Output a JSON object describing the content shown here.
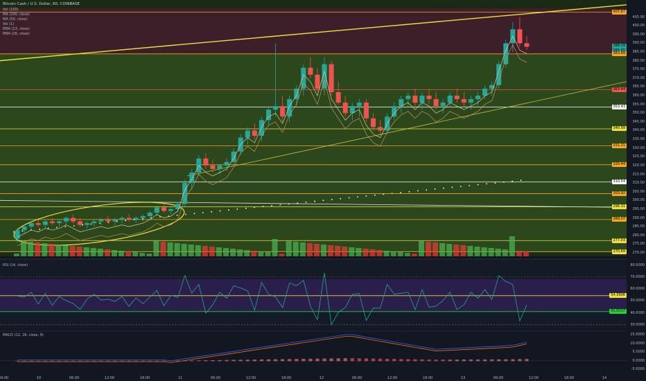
{
  "header": {
    "title": "Bitcoin Cash / U.S. Dollar, 60, COINBASE",
    "indicators": [
      "Vol (100)",
      "MA (200, close)",
      "MA (50, close)",
      "Vol (1)",
      "EMA (13, close)",
      "EMA (26, close)"
    ]
  },
  "rsi_label": "RSI (14, close)",
  "macd_label": "MACD (12, 26, close, 9)",
  "colors": {
    "bg": "#131722",
    "up": "#26a69a",
    "down": "#ef5350",
    "green_zone": "#2f4a1c",
    "red_zone": "#3d1f2a",
    "rsi_bg": "#2a1f4a",
    "yellow": "#f0e040",
    "orange": "#f5a623"
  },
  "price_axis": {
    "ticks": [
      "405.00",
      "400.00",
      "395.00",
      "390.00",
      "385.00",
      "380.00",
      "375.00",
      "370.00",
      "365.00",
      "360.00",
      "355.00",
      "350.00",
      "345.00",
      "340.00",
      "335.00",
      "330.00",
      "325.00",
      "320.00",
      "315.00",
      "310.00",
      "305.00",
      "300.00",
      "295.00",
      "290.00",
      "285.00",
      "280.00",
      "275.00",
      "270.00"
    ],
    "labels": [
      {
        "text": "407.87",
        "color": "#f5a623",
        "price": 407.87
      },
      {
        "text": "388.29",
        "color": "#26a69a",
        "price": 388.29
      },
      {
        "text": "385.55",
        "color": "#26a69a",
        "price": 385.55
      },
      {
        "text": "383.89",
        "color": "#f5a623",
        "price": 383.89
      },
      {
        "text": "363.44",
        "color": "#ef5350",
        "price": 363.44
      },
      {
        "text": "353.43",
        "color": "#ffffff",
        "price": 353.43
      },
      {
        "text": "340.99",
        "color": "#f0e040",
        "price": 340.99
      },
      {
        "text": "331.21",
        "color": "#f5a623",
        "price": 331.21
      },
      {
        "text": "320.44",
        "color": "#f5a623",
        "price": 320.44
      },
      {
        "text": "310.54",
        "color": "#ffffff",
        "price": 310.54
      },
      {
        "text": "303.92",
        "color": "#f5a623",
        "price": 303.92
      },
      {
        "text": "296.31",
        "color": "#f0e040",
        "price": 296.31
      },
      {
        "text": "289.07",
        "color": "#f5a623",
        "price": 289.07
      },
      {
        "text": "277.03",
        "color": "#f0e040",
        "price": 277.03
      },
      {
        "text": "270.69",
        "color": "#f0e040",
        "price": 270.69
      }
    ]
  },
  "rsi_axis": {
    "ticks": [
      "80.0000",
      "70.0000",
      "60.0000",
      "50.0000",
      "40.0000",
      "30.0000"
    ],
    "labels": [
      {
        "text": "54.3906",
        "color": "#f0e040",
        "value": 54.39
      },
      {
        "text": "41.0117",
        "color": "#26d23a",
        "value": 41.01
      }
    ]
  },
  "macd_axis": {
    "ticks": [
      "15.0000",
      "10.0000",
      "5.0000",
      "0.0000",
      "-5.0000"
    ]
  },
  "time_axis": [
    "09:00",
    "10",
    "06:00",
    "12:00",
    "18:00",
    "11",
    "06:00",
    "12:00",
    "18:00",
    "12",
    "06:00",
    "12:00",
    "18:00",
    "13",
    "06:00",
    "12:00",
    "18:00",
    "14"
  ],
  "chart_data": {
    "type": "candlestick",
    "ylim": [
      268,
      410
    ],
    "candles": [
      [
        278,
        284,
        276,
        283
      ],
      [
        283,
        286,
        281,
        285
      ],
      [
        285,
        288,
        283,
        287
      ],
      [
        287,
        289,
        285,
        286
      ],
      [
        286,
        289,
        284,
        288
      ],
      [
        288,
        290,
        286,
        287
      ],
      [
        287,
        289,
        285,
        288
      ],
      [
        288,
        291,
        286,
        290
      ],
      [
        290,
        292,
        287,
        288
      ],
      [
        288,
        290,
        285,
        286
      ],
      [
        286,
        288,
        284,
        287
      ],
      [
        287,
        289,
        285,
        288
      ],
      [
        288,
        290,
        286,
        289
      ],
      [
        289,
        291,
        287,
        288
      ],
      [
        288,
        290,
        286,
        289
      ],
      [
        289,
        291,
        287,
        290
      ],
      [
        290,
        292,
        288,
        289
      ],
      [
        289,
        291,
        287,
        290
      ],
      [
        290,
        292,
        288,
        291
      ],
      [
        291,
        294,
        289,
        293
      ],
      [
        293,
        297,
        291,
        296
      ],
      [
        296,
        298,
        293,
        294
      ],
      [
        294,
        296,
        292,
        295
      ],
      [
        295,
        299,
        293,
        298
      ],
      [
        298,
        312,
        296,
        310
      ],
      [
        310,
        318,
        306,
        316
      ],
      [
        316,
        326,
        314,
        324
      ],
      [
        324,
        327,
        318,
        320
      ],
      [
        320,
        323,
        316,
        318
      ],
      [
        318,
        321,
        315,
        320
      ],
      [
        320,
        324,
        317,
        322
      ],
      [
        322,
        330,
        320,
        328
      ],
      [
        328,
        338,
        326,
        336
      ],
      [
        336,
        342,
        332,
        340
      ],
      [
        340,
        344,
        335,
        337
      ],
      [
        337,
        348,
        334,
        346
      ],
      [
        346,
        354,
        343,
        352
      ],
      [
        352,
        390,
        348,
        354
      ],
      [
        354,
        360,
        345,
        348
      ],
      [
        348,
        360,
        345,
        358
      ],
      [
        358,
        366,
        354,
        364
      ],
      [
        364,
        378,
        360,
        376
      ],
      [
        376,
        382,
        370,
        372
      ],
      [
        372,
        376,
        362,
        364
      ],
      [
        364,
        382,
        360,
        378
      ],
      [
        378,
        380,
        360,
        362
      ],
      [
        362,
        368,
        355,
        356
      ],
      [
        356,
        360,
        348,
        350
      ],
      [
        350,
        356,
        346,
        354
      ],
      [
        354,
        358,
        348,
        356
      ],
      [
        356,
        358,
        345,
        347
      ],
      [
        347,
        350,
        340,
        342
      ],
      [
        342,
        346,
        338,
        340
      ],
      [
        340,
        350,
        338,
        348
      ],
      [
        348,
        356,
        346,
        354
      ],
      [
        354,
        360,
        350,
        358
      ],
      [
        358,
        362,
        354,
        360
      ],
      [
        360,
        364,
        354,
        356
      ],
      [
        356,
        362,
        352,
        360
      ],
      [
        360,
        364,
        355,
        358
      ],
      [
        358,
        362,
        352,
        354
      ],
      [
        354,
        358,
        350,
        356
      ],
      [
        356,
        362,
        354,
        360
      ],
      [
        360,
        364,
        356,
        358
      ],
      [
        358,
        362,
        354,
        356
      ],
      [
        356,
        360,
        352,
        358
      ],
      [
        358,
        362,
        354,
        360
      ],
      [
        360,
        366,
        358,
        364
      ],
      [
        364,
        368,
        360,
        366
      ],
      [
        366,
        380,
        364,
        378
      ],
      [
        378,
        392,
        376,
        390
      ],
      [
        390,
        402,
        385,
        398
      ],
      [
        398,
        405,
        388,
        390
      ],
      [
        390,
        394,
        386,
        388
      ]
    ]
  }
}
